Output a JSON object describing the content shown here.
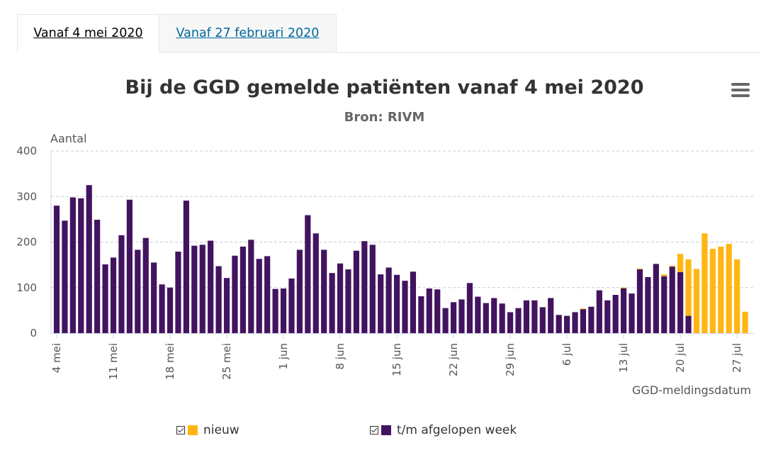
{
  "tabs": [
    {
      "label": "Vanaf 4 mei 2020",
      "active": true
    },
    {
      "label": "Vanaf 27 februari 2020",
      "active": false
    }
  ],
  "title": "Bij de GGD gemelde patiënten vanaf 4 mei 2020",
  "subtitle": "Bron: RIVM",
  "menu_icon": "hamburger-menu-icon",
  "colors": {
    "nieuw": "#ffb612",
    "afgelopen_week": "#42145f",
    "grid": "#c8ccd8",
    "axis_text": "#555555"
  },
  "chart_data": {
    "type": "bar",
    "stacked": true,
    "ylabel": "Aantal",
    "xlabel": "GGD-meldingsdatum",
    "ylim": [
      0,
      400
    ],
    "yticks": [
      0,
      100,
      200,
      300,
      400
    ],
    "grid": true,
    "legend_position": "bottom",
    "start_date": "2020-05-04",
    "xtick_labels": [
      "4 mei",
      "11 mei",
      "18 mei",
      "25 mei",
      "1 jun",
      "8 jun",
      "15 jun",
      "22 jun",
      "29 jun",
      "6 jul",
      "13 jul",
      "20 jul",
      "27 jul"
    ],
    "series": [
      {
        "name": "t/m afgelopen week",
        "color": "#42145f",
        "values": [
          280,
          247,
          298,
          296,
          325,
          249,
          151,
          166,
          215,
          293,
          183,
          209,
          155,
          107,
          100,
          179,
          291,
          192,
          194,
          203,
          147,
          121,
          170,
          190,
          205,
          163,
          169,
          97,
          98,
          120,
          183,
          259,
          219,
          183,
          132,
          153,
          140,
          181,
          202,
          194,
          129,
          144,
          128,
          115,
          135,
          81,
          98,
          96,
          55,
          68,
          74,
          110,
          80,
          66,
          77,
          65,
          46,
          55,
          72,
          72,
          57,
          77,
          40,
          38,
          46,
          53,
          58,
          94,
          72,
          84,
          99,
          87,
          140,
          123,
          152,
          125,
          146,
          134,
          38,
          0,
          0,
          0,
          0,
          0,
          0,
          0,
          0
        ]
      },
      {
        "name": "nieuw",
        "color": "#ffb612",
        "values": [
          0,
          0,
          0,
          0,
          0,
          0,
          0,
          0,
          0,
          0,
          0,
          0,
          0,
          0,
          0,
          0,
          0,
          0,
          0,
          0,
          0,
          0,
          0,
          0,
          0,
          0,
          0,
          0,
          0,
          0,
          0,
          0,
          0,
          0,
          0,
          0,
          0,
          0,
          0,
          0,
          0,
          0,
          0,
          0,
          0,
          0,
          0,
          0,
          0,
          0,
          0,
          0,
          0,
          0,
          0,
          0,
          0,
          0,
          0,
          0,
          0,
          0,
          0,
          0,
          0,
          1,
          0,
          0,
          0,
          0,
          1,
          0,
          2,
          0,
          0,
          4,
          2,
          40,
          124,
          141,
          219,
          185,
          190,
          196,
          162,
          47,
          0
        ]
      }
    ]
  },
  "legend": [
    {
      "label": "nieuw",
      "checked": true,
      "color": "#ffb612"
    },
    {
      "label": "t/m afgelopen week",
      "checked": true,
      "color": "#42145f"
    }
  ]
}
